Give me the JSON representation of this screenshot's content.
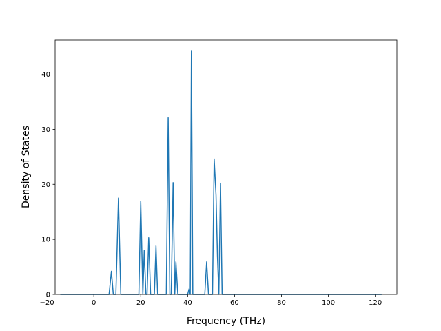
{
  "chart_data": {
    "type": "line",
    "title": "",
    "xlabel": "Frequency (THz)",
    "ylabel": "Density of States",
    "xlim": [
      -16.5,
      129.2
    ],
    "ylim": [
      0,
      46.2
    ],
    "xticks": [
      -20,
      0,
      20,
      40,
      60,
      80,
      100,
      120
    ],
    "yticks": [
      0,
      10,
      20,
      30,
      40
    ],
    "grid": false,
    "legend": "none",
    "line_color": "#1f77b4",
    "series": [
      {
        "x": [
          -14.3,
          6.5,
          7.5,
          8.3,
          9.4,
          10.5,
          11.5,
          19.2,
          20.0,
          20.9,
          21.5,
          22.2,
          22.7,
          23.4,
          24.2,
          25.8,
          26.5,
          27.2,
          30.9,
          31.7,
          32.4,
          33.0,
          33.8,
          34.5,
          35.0,
          35.8,
          40.0,
          40.6,
          41.1,
          41.6,
          42.2,
          47.3,
          48.1,
          48.9,
          50.6,
          51.3,
          52.1,
          52.7,
          53.3,
          54.0,
          54.7,
          122.7
        ],
        "y": [
          0,
          0,
          4.2,
          0,
          0,
          17.5,
          0,
          0,
          16.9,
          0,
          8.0,
          0,
          0,
          10.3,
          0,
          0,
          8.8,
          0,
          0,
          32.1,
          0,
          0,
          20.3,
          0,
          5.9,
          0,
          0,
          1.0,
          0,
          44.2,
          0,
          0,
          5.9,
          0,
          0,
          24.6,
          18.0,
          7.0,
          0,
          20.2,
          0,
          0
        ]
      }
    ]
  }
}
